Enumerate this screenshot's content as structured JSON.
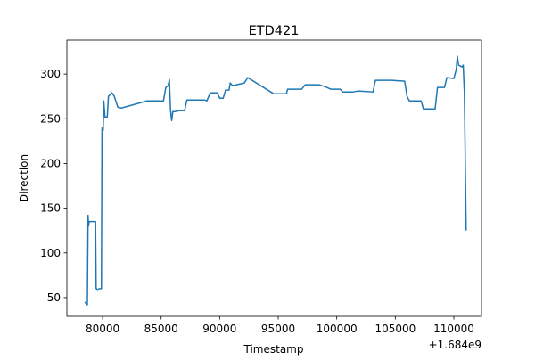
{
  "chart_data": {
    "type": "line",
    "title": "ETD421",
    "xlabel": "Timestamp",
    "ylabel": "Direction",
    "x_offset_label": "+1.684e9",
    "x": [
      78480,
      78700,
      78760,
      78800,
      78850,
      79400,
      79450,
      79500,
      79550,
      79700,
      79900,
      79950,
      80050,
      80100,
      80200,
      80400,
      80500,
      80800,
      81000,
      81300,
      81600,
      83800,
      85200,
      85400,
      85600,
      85700,
      85800,
      85900,
      86000,
      86200,
      86500,
      87000,
      87200,
      88300,
      88700,
      88900,
      89200,
      89800,
      90000,
      90300,
      90500,
      90800,
      90900,
      91100,
      92100,
      92400,
      94000,
      94600,
      95700,
      95800,
      97000,
      97300,
      98500,
      99000,
      99500,
      100300,
      100500,
      101400,
      101800,
      103100,
      103300,
      104700,
      105800,
      106000,
      106200,
      107200,
      107400,
      108400,
      108600,
      109200,
      109400,
      110000,
      110200,
      110300,
      110400,
      110700,
      110800,
      110900,
      111050
    ],
    "series": [
      {
        "name": "Direction",
        "color": "#1f77b4",
        "values": [
          45,
          42,
          142,
          130,
          135,
          135,
          60,
          60,
          58,
          60,
          60,
          240,
          237,
          270,
          252,
          252,
          275,
          279,
          275,
          263,
          262,
          270,
          270,
          285,
          287,
          294,
          260,
          248,
          258,
          258,
          259,
          259,
          271,
          271,
          271,
          270,
          279,
          279,
          273,
          273,
          282,
          282,
          290,
          287,
          290,
          296,
          283,
          278,
          278,
          283,
          283,
          288,
          288,
          286,
          283,
          283,
          280,
          280,
          281,
          280,
          293,
          293,
          292,
          275,
          270,
          270,
          261,
          261,
          285,
          285,
          296,
          295,
          305,
          320,
          310,
          308,
          310,
          278,
          125
        ]
      }
    ],
    "xlim": [
      76950,
      112360
    ],
    "ylim": [
      29,
      338
    ],
    "xticks": [
      80000,
      85000,
      90000,
      95000,
      100000,
      105000,
      110000
    ],
    "yticks": [
      50,
      100,
      150,
      200,
      250,
      300
    ]
  }
}
